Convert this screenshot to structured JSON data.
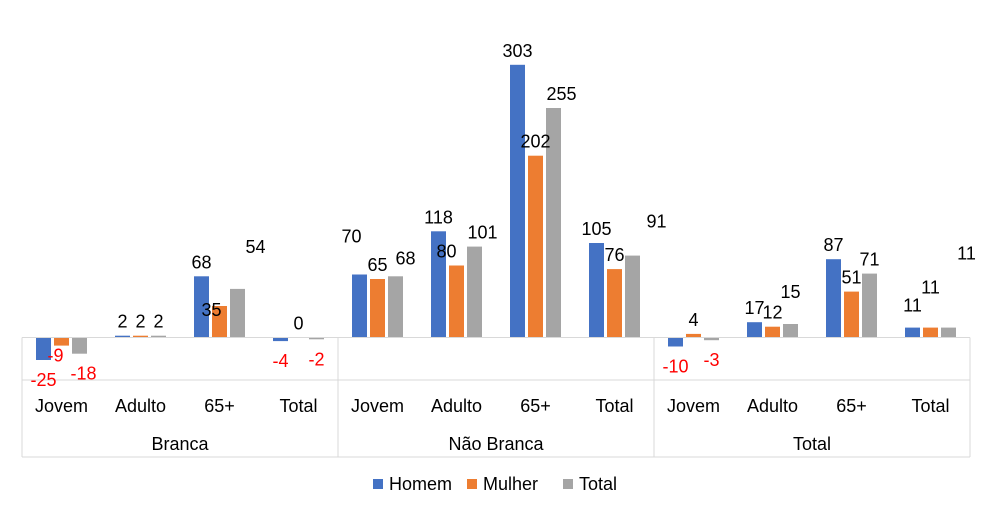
{
  "chart_data": {
    "type": "bar",
    "categories": [
      {
        "group": "Branca",
        "label": "Jovem"
      },
      {
        "group": "Branca",
        "label": "Adulto"
      },
      {
        "group": "Branca",
        "label": "65+"
      },
      {
        "group": "Branca",
        "label": "Total"
      },
      {
        "group": "Não Branca",
        "label": "Jovem"
      },
      {
        "group": "Não Branca",
        "label": "Adulto"
      },
      {
        "group": "Não Branca",
        "label": "65+"
      },
      {
        "group": "Não Branca",
        "label": "Total"
      },
      {
        "group": "Total",
        "label": "Jovem"
      },
      {
        "group": "Total",
        "label": "Adulto"
      },
      {
        "group": "Total",
        "label": "65+"
      },
      {
        "group": "Total",
        "label": "Total"
      }
    ],
    "groups": [
      "Branca",
      "Não Branca",
      "Total"
    ],
    "series": [
      {
        "name": "Homem",
        "color": "#4472C4",
        "values": [
          -25,
          2,
          68,
          -4,
          70,
          118,
          303,
          105,
          -10,
          17,
          87,
          11
        ]
      },
      {
        "name": "Mulher",
        "color": "#ED7D31",
        "values": [
          -9,
          2,
          35,
          0,
          65,
          80,
          202,
          76,
          4,
          12,
          51,
          11
        ]
      },
      {
        "name": "Total",
        "color": "#A5A5A5",
        "values": [
          -18,
          2,
          54,
          -2,
          68,
          101,
          255,
          91,
          -3,
          15,
          71,
          11
        ]
      }
    ],
    "data_labels": {
      "positive_color": "#000000",
      "negative_color": "#FF0000"
    },
    "title": "",
    "xlabel": "",
    "ylabel": "",
    "legend": "bottom",
    "grid": false
  }
}
